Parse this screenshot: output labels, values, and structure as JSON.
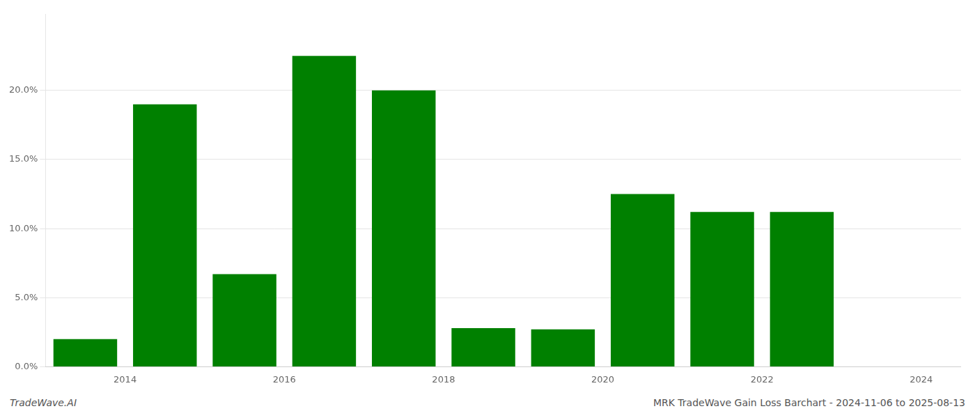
{
  "chart_data": {
    "type": "bar",
    "x": [
      2013.5,
      2014.5,
      2015.5,
      2016.5,
      2017.5,
      2018.5,
      2019.5,
      2020.5,
      2021.5,
      2022.5,
      2023.5
    ],
    "values": [
      0.02,
      0.19,
      0.067,
      0.225,
      0.2,
      0.028,
      0.027,
      0.125,
      0.112,
      0.112,
      0.0
    ],
    "color": "#008000",
    "xlim": [
      2013.0,
      2024.5
    ],
    "xticks": [
      2014,
      2016,
      2018,
      2020,
      2022,
      2024
    ],
    "ylim": [
      0,
      0.255
    ],
    "yticks": [
      {
        "value": 0.0,
        "label": "0.0%"
      },
      {
        "value": 0.05,
        "label": "5.0%"
      },
      {
        "value": 0.1,
        "label": "10.0%"
      },
      {
        "value": 0.15,
        "label": "15.0%"
      },
      {
        "value": 0.2,
        "label": "20.0%"
      }
    ],
    "grid": true,
    "annotations": [
      "TradeWave.AI",
      "MRK TradeWave Gain Loss Barchart - 2024-11-06 to 2025-08-13"
    ]
  }
}
